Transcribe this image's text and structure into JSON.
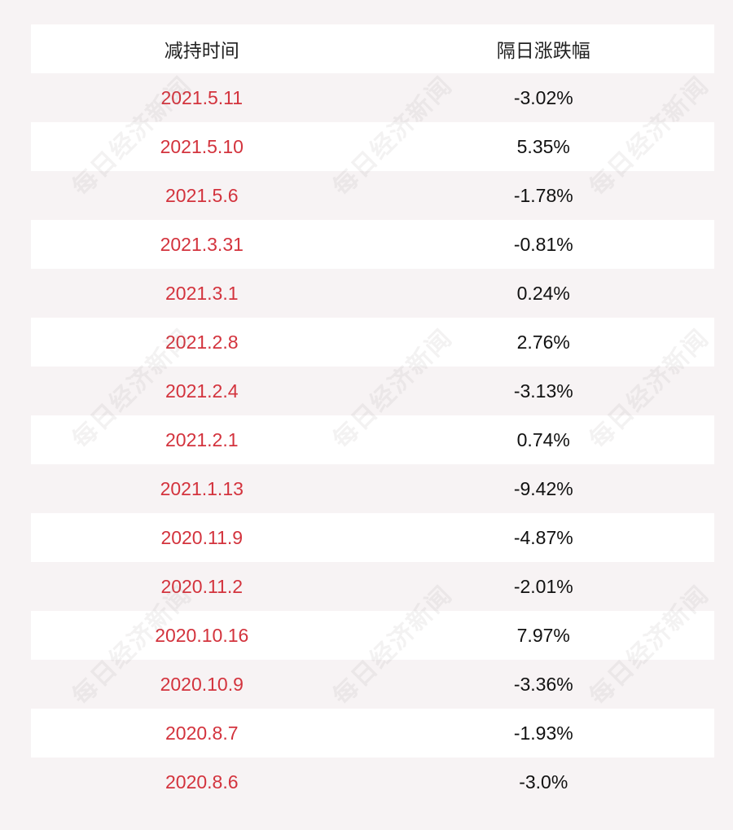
{
  "table": {
    "header": [
      "减持时间",
      "隔日涨跌幅"
    ],
    "rows": [
      [
        "2021.5.11",
        "-3.02%"
      ],
      [
        "2021.5.10",
        "5.35%"
      ],
      [
        "2021.5.6",
        "-1.78%"
      ],
      [
        "2021.3.31",
        "-0.81%"
      ],
      [
        "2021.3.1",
        "0.24%"
      ],
      [
        "2021.2.8",
        "2.76%"
      ],
      [
        "2021.2.4",
        "-3.13%"
      ],
      [
        "2021.2.1",
        "0.74%"
      ],
      [
        "2021.1.13",
        "-9.42%"
      ],
      [
        "2020.11.9",
        "-4.87%"
      ],
      [
        "2020.11.2",
        "-2.01%"
      ],
      [
        "2020.10.16",
        "7.97%"
      ],
      [
        "2020.10.9",
        "-3.36%"
      ],
      [
        "2020.8.7",
        "-1.93%"
      ],
      [
        "2020.8.6",
        "-3.0%"
      ]
    ]
  },
  "watermark": "每日经济新闻"
}
